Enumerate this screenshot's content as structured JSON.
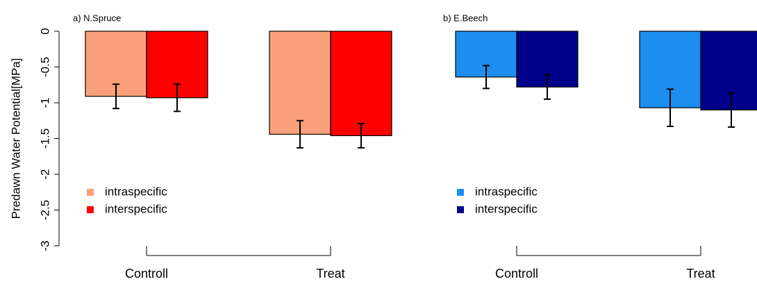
{
  "chart_data": [
    {
      "type": "bar",
      "title": "a) N.Spruce",
      "ylabel": "Predawn Water Potential[MPa]",
      "categories": [
        "Controll",
        "Treat"
      ],
      "series": [
        {
          "name": "intraspecific",
          "color": "#f9a07a",
          "values": [
            -0.91,
            -1.44
          ],
          "errors": [
            0.17,
            0.19
          ]
        },
        {
          "name": "interspecific",
          "color": "#ff0000",
          "values": [
            -0.93,
            -1.46
          ],
          "errors": [
            0.19,
            0.17
          ]
        }
      ],
      "ylim": [
        -3,
        0
      ],
      "yticks": [
        0,
        -0.5,
        -1,
        -1.5,
        -2,
        -2.5,
        -3
      ]
    },
    {
      "type": "bar",
      "title": "b) E.Beech",
      "categories": [
        "Controll",
        "Treat"
      ],
      "series": [
        {
          "name": "intraspecific",
          "color": "#1c8ef0",
          "values": [
            -0.64,
            -1.07
          ],
          "errors": [
            0.16,
            0.26
          ]
        },
        {
          "name": "interspecific",
          "color": "#00008b",
          "values": [
            -0.78,
            -1.1
          ],
          "errors": [
            0.17,
            0.24
          ]
        }
      ],
      "ylim": [
        -3,
        0
      ]
    }
  ]
}
